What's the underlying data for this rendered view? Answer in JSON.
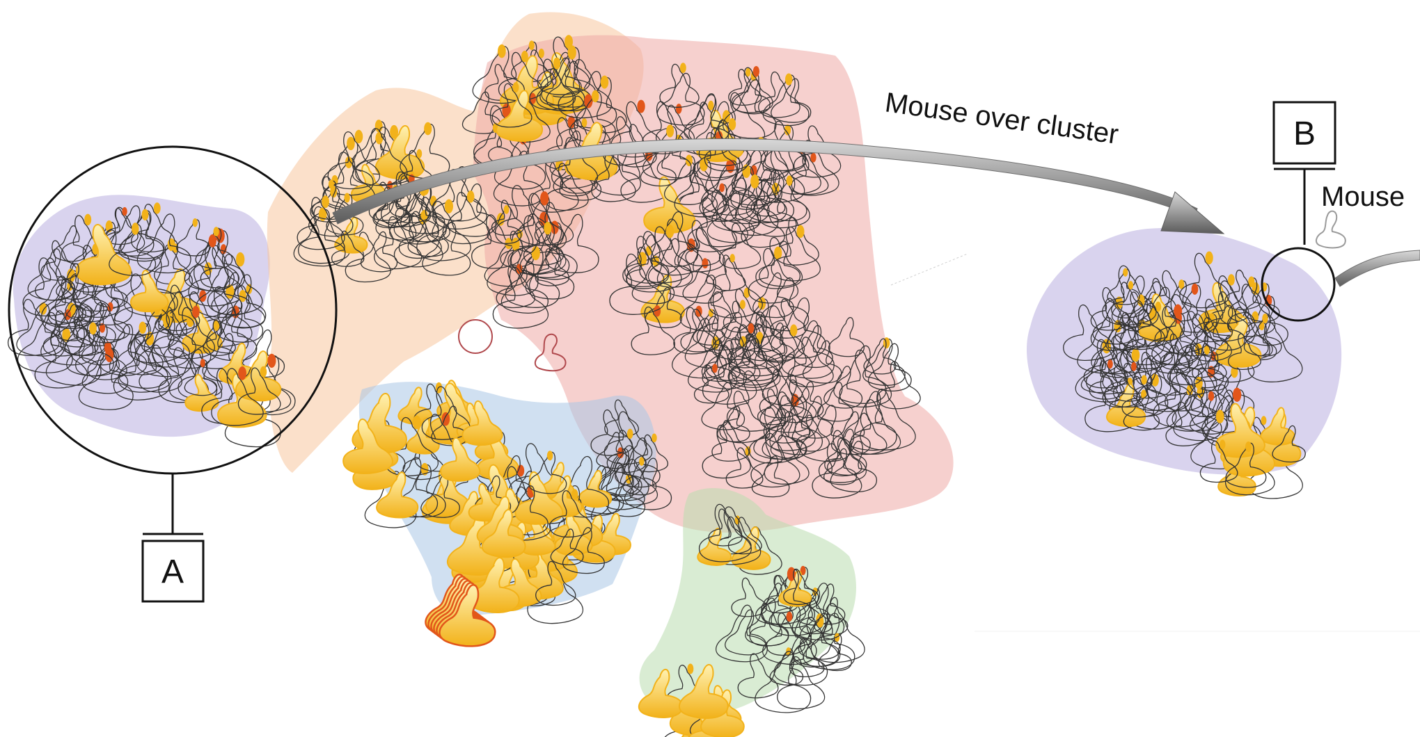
{
  "annotations": {
    "box_a": "A",
    "box_b": "B",
    "arrow_caption": "Mouse over cluster",
    "cutoff_caption": "Mouse"
  },
  "clusters": [
    {
      "id": "purple",
      "color": "#b9aee0"
    },
    {
      "id": "orange",
      "color": "#f7c79e"
    },
    {
      "id": "red",
      "color": "#eeaaa6"
    },
    {
      "id": "blue",
      "color": "#a9c6e6"
    },
    {
      "id": "green",
      "color": "#b9dcae"
    },
    {
      "id": "purple-detail",
      "color": "#b9aee0"
    }
  ],
  "palette": {
    "glyph_stroke": "#333333",
    "glyph_highlight": "#f2b21a",
    "glyph_highlight_deep": "#e2561a",
    "outlier_stroke": "#b0484c",
    "arrow_fill": "#8c8c8c"
  },
  "icons": [
    "magnifier-circle-icon",
    "curved-arrow-icon",
    "shape-glyph-icon"
  ]
}
